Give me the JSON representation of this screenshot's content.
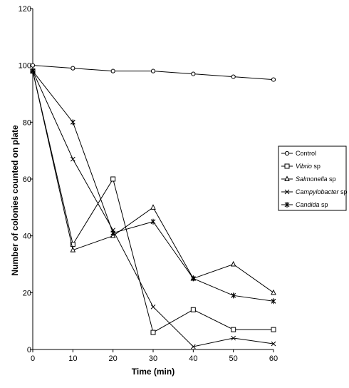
{
  "chart_data": {
    "type": "line",
    "xlabel": "Time (min)",
    "ylabel": "Number of colonies counted on plate",
    "xlim": [
      0,
      60
    ],
    "ylim": [
      0,
      120
    ],
    "x_ticks": [
      "0",
      "10",
      "20",
      "30",
      "40",
      "50",
      "60"
    ],
    "y_ticks": [
      "0",
      "20",
      "40",
      "60",
      "80",
      "100",
      "120"
    ],
    "grid": false,
    "legend_position": "right",
    "x": [
      0,
      10,
      20,
      30,
      40,
      50,
      60
    ],
    "series": [
      {
        "name": "Control",
        "name_main": "Control",
        "name_suffix": "",
        "marker": "circle",
        "values": [
          100,
          99,
          98,
          98,
          97,
          96,
          95
        ]
      },
      {
        "name": "Vibrio sp",
        "name_main": "Vibrio",
        "name_suffix": " sp",
        "marker": "square",
        "values": [
          98,
          37,
          60,
          6,
          14,
          7,
          7
        ]
      },
      {
        "name": "Salmonella sp",
        "name_main": "Salmonella",
        "name_suffix": " sp",
        "marker": "triangle",
        "values": [
          98,
          35,
          40,
          50,
          25,
          30,
          20
        ]
      },
      {
        "name": "Campylobacter sp",
        "name_main": "Campylobacter",
        "name_suffix": " sp",
        "marker": "x",
        "values": [
          98,
          67,
          42,
          15,
          1,
          4,
          2
        ]
      },
      {
        "name": "Candida sp",
        "name_main": "Candida",
        "name_suffix": " sp",
        "marker": "asterisk",
        "values": [
          98,
          80,
          41,
          45,
          25,
          19,
          17
        ]
      }
    ]
  }
}
